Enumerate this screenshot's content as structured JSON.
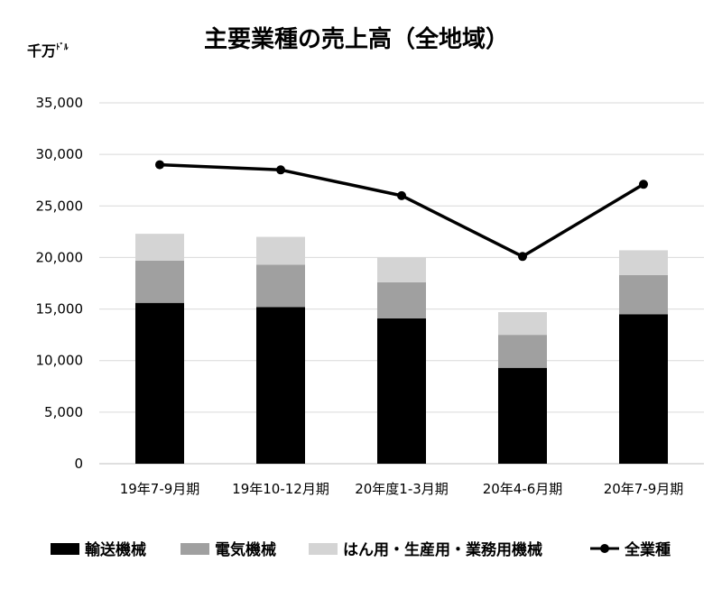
{
  "chart_data": {
    "type": "bar",
    "title": "主要業種の売上高（全地域）",
    "unit_label": "千万",
    "unit_suffix": "ﾄﾞﾙ",
    "categories": [
      "19年7-9月期",
      "19年10-12月期",
      "20年度1-3月期",
      "20年4-6月期",
      "20年7-9月期"
    ],
    "ylim": [
      0,
      35000
    ],
    "yticks": [
      "0",
      "5,000",
      "10,000",
      "15,000",
      "20,000",
      "25,000",
      "30,000",
      "35,000"
    ],
    "grid": true,
    "legend_position": "bottom",
    "stacked_series": [
      {
        "name": "輸送機械",
        "color": "#000000",
        "values": [
          15600,
          15200,
          14100,
          9300,
          14500
        ]
      },
      {
        "name": "電気機械",
        "color": "#a0a0a0",
        "values": [
          4100,
          4100,
          3500,
          3200,
          3800
        ]
      },
      {
        "name": "はん用・生産用・業務用機械",
        "color": "#d4d4d4",
        "values": [
          2600,
          2700,
          2400,
          2200,
          2400
        ]
      }
    ],
    "line_series": {
      "name": "全業種",
      "color": "#000000",
      "values": [
        29000,
        28500,
        26000,
        20100,
        27100
      ]
    }
  }
}
